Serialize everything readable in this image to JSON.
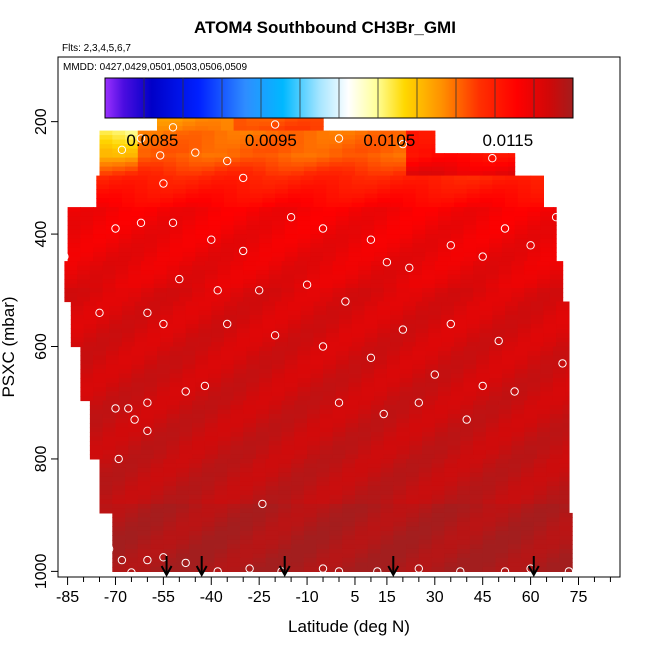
{
  "chart_data": {
    "type": "heatmap",
    "title": "ATOM4 Southbound CH3Br_GMI",
    "subtitle_flights": "Flts: 2,3,4,5,6,7",
    "subtitle_dates": "MMDD: 0427,0429,0501,0503,0506,0509",
    "xlabel": "Latitude (deg N)",
    "ylabel": "PSXC (mbar)",
    "xlim": [
      -88,
      88
    ],
    "ylim": [
      1010,
      85
    ],
    "x_ticks": [
      -85,
      -70,
      -55,
      -40,
      -25,
      -10,
      5,
      15,
      30,
      45,
      60,
      75
    ],
    "x_tick_labels": [
      "-85",
      "-70",
      "-55",
      "-40",
      "-25",
      "-10",
      "5",
      "15",
      "30",
      "45",
      "60",
      "75"
    ],
    "y_ticks": [
      200,
      400,
      600,
      800,
      1000
    ],
    "y_tick_labels": [
      "200",
      "400",
      "600",
      "800",
      "1000"
    ],
    "colorbar": {
      "min": 0.0081,
      "max": 0.01205,
      "ticks": [
        0.0085,
        0.0095,
        0.0105,
        0.0115
      ],
      "tick_labels": [
        "0.0085",
        "0.0095",
        "0.0105",
        "0.0115"
      ]
    },
    "profile_arrow_latitudes": [
      -54,
      -43,
      -17,
      17,
      61
    ],
    "approximate_field": [
      {
        "p_range": [
          160,
          215
        ],
        "lat_range": [
          -57,
          -5
        ],
        "value_range": [
          0.0108,
          0.0113
        ]
      },
      {
        "p_range": [
          215,
          260
        ],
        "lat_range": [
          -75,
          30
        ],
        "value_range": [
          0.0103,
          0.0115
        ]
      },
      {
        "p_range": [
          260,
          300
        ],
        "lat_range": [
          -75,
          55
        ],
        "value_range": [
          0.0107,
          0.0117
        ]
      },
      {
        "p_range": [
          300,
          350
        ],
        "lat_range": [
          -76,
          64
        ],
        "value_range": [
          0.011,
          0.0117
        ]
      },
      {
        "p_range": [
          350,
          500
        ],
        "lat_range": [
          -86,
          70
        ],
        "value_range": [
          0.0115,
          0.0118
        ]
      },
      {
        "p_range": [
          500,
          1000
        ],
        "lat_range": [
          -86,
          72
        ],
        "value_range": [
          0.0116,
          0.012
        ]
      }
    ],
    "grid": false,
    "legend": "colorbar-top"
  }
}
